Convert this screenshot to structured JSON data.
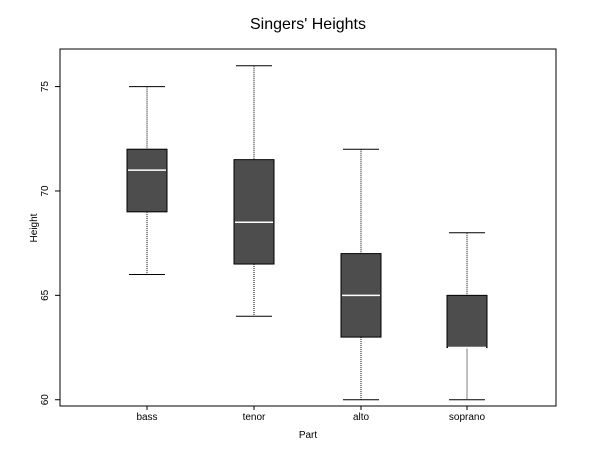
{
  "chart_data": {
    "type": "box",
    "title": "Singers' Heights",
    "xlabel": "Part",
    "ylabel": "Height",
    "ylim": [
      59.7,
      76.8
    ],
    "yticks": [
      60,
      65,
      70,
      75
    ],
    "grid": false,
    "legend": "none",
    "categories": [
      "bass",
      "tenor",
      "alto",
      "soprano"
    ],
    "boxes": [
      {
        "category": "bass",
        "whisker_low": 66,
        "q1": 69,
        "median": 71,
        "q3": 72,
        "whisker_high": 75
      },
      {
        "category": "tenor",
        "whisker_low": 64,
        "q1": 66.5,
        "median": 68.5,
        "q3": 71.5,
        "whisker_high": 76
      },
      {
        "category": "alto",
        "whisker_low": 60,
        "q1": 63,
        "median": 65,
        "q3": 67,
        "whisker_high": 72
      },
      {
        "category": "soprano",
        "whisker_low": 60,
        "q1": 62.5,
        "median": 62.5,
        "q3": 65,
        "whisker_high": 68
      }
    ],
    "colors": {
      "box_fill": "#4d4d4d",
      "median_line": "#ffffff",
      "whisker": "#000000"
    }
  }
}
